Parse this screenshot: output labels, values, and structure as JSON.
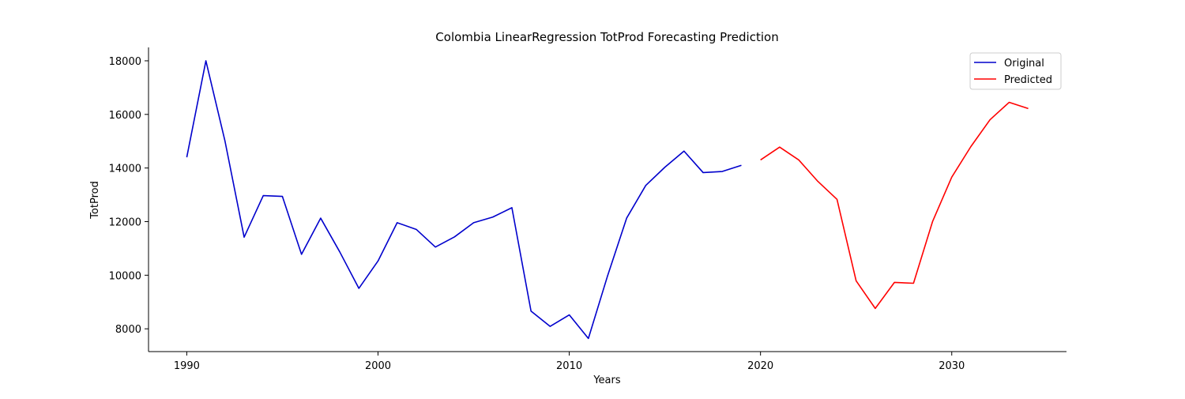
{
  "chart_data": {
    "type": "line",
    "title": "Colombia LinearRegression TotProd Forecasting Prediction",
    "xlabel": "Years",
    "ylabel": "TotProd",
    "xlim": [
      1988,
      2036
    ],
    "ylim": [
      7150,
      18500
    ],
    "xticks": [
      1990,
      2000,
      2010,
      2020,
      2030
    ],
    "yticks": [
      8000,
      10000,
      12000,
      14000,
      16000,
      18000
    ],
    "grid": false,
    "legend_position": "top-right",
    "series": [
      {
        "name": "Original",
        "color": "#0000cc",
        "x": [
          1990,
          1991,
          1992,
          1993,
          1994,
          1995,
          1996,
          1997,
          1998,
          1999,
          2000,
          2001,
          2002,
          2003,
          2004,
          2005,
          2006,
          2007,
          2008,
          2009,
          2010,
          2011,
          2012,
          2013,
          2014,
          2015,
          2016,
          2017,
          2018,
          2019
        ],
        "y": [
          14400,
          18000,
          15000,
          11420,
          12970,
          12940,
          10780,
          12130,
          10870,
          9510,
          10530,
          11960,
          11710,
          11050,
          11430,
          11960,
          12170,
          12520,
          8660,
          8090,
          8520,
          7640,
          9970,
          12130,
          13350,
          14030,
          14630,
          13830,
          13870,
          14100
        ]
      },
      {
        "name": "Predicted",
        "color": "#ff0000",
        "x": [
          2020,
          2021,
          2022,
          2023,
          2024,
          2025,
          2026,
          2027,
          2028,
          2029,
          2030,
          2031,
          2032,
          2033,
          2034
        ],
        "y": [
          14300,
          14780,
          14300,
          13500,
          12830,
          9790,
          8760,
          9730,
          9700,
          12010,
          13660,
          14800,
          15800,
          16450,
          16220
        ]
      }
    ]
  }
}
